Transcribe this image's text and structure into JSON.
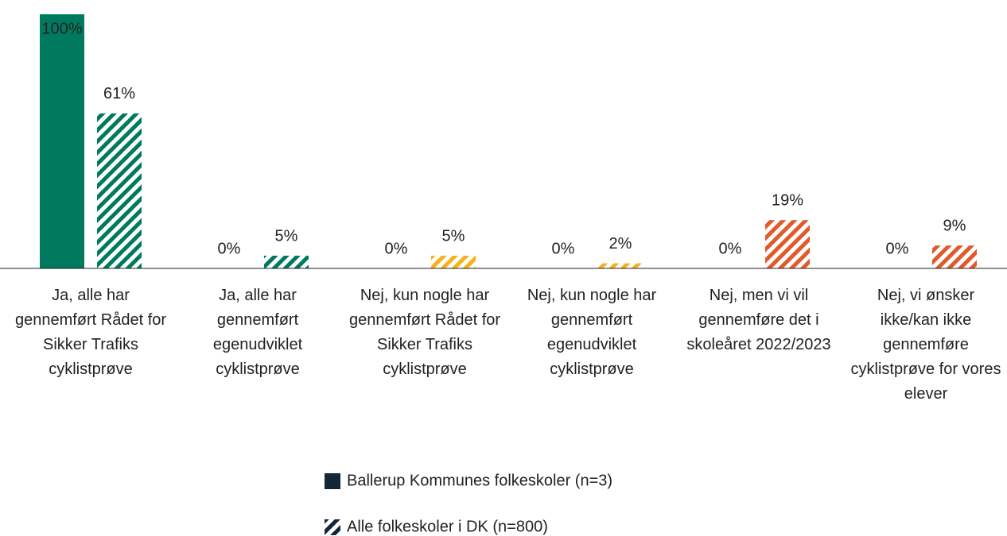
{
  "chart_data": {
    "type": "bar",
    "categories": [
      "Ja, alle har gennemført Rådet for Sikker Trafiks cyklistprøve",
      "Ja, alle har gennemført egenudviklet cyklistprøve",
      "Nej, kun nogle har gennemført Rådet for Sikker Trafiks cyklistprøve",
      "Nej, kun nogle har gennemført egenudviklet cyklistprøve",
      "Nej, men vi vil gennemføre det i skoleåret 2022/2023",
      "Nej, vi ønsker ikke/kan ikke gennemføre cyklistprøve for vores elever"
    ],
    "series": [
      {
        "name": "Ballerup Kommunes folkeskoler (n=3)",
        "color": "#12263a",
        "pattern": "solid",
        "point_colors": [
          "#007a5e",
          "#007a5e",
          "#f5b21b",
          "#f5b21b",
          "#e05a2b",
          "#e05a2b"
        ],
        "values": [
          100,
          0,
          0,
          0,
          0,
          0
        ],
        "value_labels": [
          "100%",
          "0%",
          "0%",
          "0%",
          "0%",
          "0%"
        ]
      },
      {
        "name": "Alle folkeskoler i DK (n=800)",
        "color": "#12263a",
        "pattern": "hatch",
        "point_colors": [
          "#007a5e",
          "#007a5e",
          "#f5b21b",
          "#f5b21b",
          "#e05a2b",
          "#e05a2b"
        ],
        "values": [
          61,
          5,
          5,
          2,
          19,
          9
        ],
        "value_labels": [
          "61%",
          "5%",
          "5%",
          "2%",
          "19%",
          "9%"
        ]
      }
    ],
    "ylim": [
      0,
      100
    ]
  }
}
